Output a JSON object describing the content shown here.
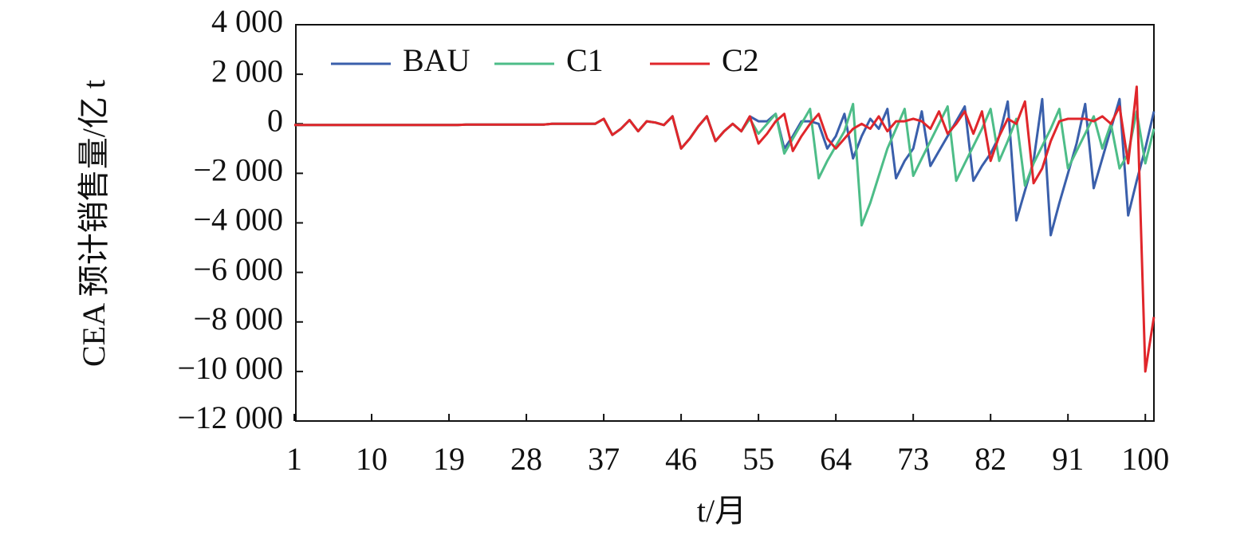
{
  "chart_data": {
    "type": "line",
    "x_label": "t/月",
    "y_label": "CEA 预计销售量/亿 t",
    "x": [
      1,
      2,
      3,
      4,
      5,
      6,
      7,
      8,
      9,
      10,
      11,
      12,
      13,
      14,
      15,
      16,
      17,
      18,
      19,
      20,
      21,
      22,
      23,
      24,
      25,
      26,
      27,
      28,
      29,
      30,
      31,
      32,
      33,
      34,
      35,
      36,
      37,
      38,
      39,
      40,
      41,
      42,
      43,
      44,
      45,
      46,
      47,
      48,
      49,
      50,
      51,
      52,
      53,
      54,
      55,
      56,
      57,
      58,
      59,
      60,
      61,
      62,
      63,
      64,
      65,
      66,
      67,
      68,
      69,
      70,
      71,
      72,
      73,
      74,
      75,
      76,
      77,
      78,
      79,
      80,
      81,
      82,
      83,
      84,
      85,
      86,
      87,
      88,
      89,
      90,
      91,
      92,
      93,
      94,
      95,
      96,
      97,
      98,
      99,
      100,
      101
    ],
    "series": [
      {
        "name": "BAU",
        "color": "#3a5fab",
        "values": [
          -50,
          -50,
          -50,
          -50,
          -50,
          -50,
          -50,
          -50,
          -50,
          -50,
          -50,
          -50,
          -50,
          -50,
          -50,
          -50,
          -50,
          -50,
          -50,
          -50,
          -30,
          -30,
          -30,
          -30,
          -30,
          -30,
          -30,
          -30,
          -30,
          -30,
          0,
          0,
          0,
          0,
          0,
          0,
          200,
          -450,
          -200,
          150,
          -300,
          100,
          50,
          -50,
          300,
          -1000,
          -600,
          -100,
          300,
          -700,
          -300,
          0,
          -300,
          300,
          100,
          100,
          400,
          -1000,
          -500,
          100,
          100,
          0,
          -1000,
          -500,
          400,
          -1400,
          -500,
          200,
          -200,
          600,
          -2200,
          -1500,
          -1000,
          500,
          -1700,
          -1100,
          -500,
          100,
          700,
          -2300,
          -1700,
          -1200,
          -500,
          900,
          -3900,
          -2700,
          -1500,
          1000,
          -4500,
          -3200,
          -2000,
          -800,
          800,
          -2600,
          -1400,
          -200,
          1000,
          -3700,
          -2300,
          -1000,
          500
        ]
      },
      {
        "name": "C1",
        "color": "#4dbd88",
        "values": [
          -50,
          -50,
          -50,
          -50,
          -50,
          -50,
          -50,
          -50,
          -50,
          -50,
          -50,
          -50,
          -50,
          -50,
          -50,
          -50,
          -50,
          -50,
          -50,
          -50,
          -30,
          -30,
          -30,
          -30,
          -30,
          -30,
          -30,
          -30,
          -30,
          -30,
          0,
          0,
          0,
          0,
          0,
          0,
          200,
          -450,
          -200,
          150,
          -300,
          100,
          50,
          -50,
          300,
          -1000,
          -600,
          -100,
          300,
          -700,
          -300,
          0,
          -300,
          200,
          -400,
          0,
          400,
          -1200,
          -600,
          0,
          600,
          -2200,
          -1500,
          -900,
          -300,
          800,
          -4100,
          -3200,
          -2100,
          -1000,
          -200,
          600,
          -2100,
          -1400,
          -700,
          0,
          700,
          -2300,
          -1600,
          -900,
          -200,
          600,
          -1500,
          -700,
          200,
          -2500,
          -1600,
          -900,
          -200,
          600,
          -1800,
          -1100,
          -400,
          300,
          -1000,
          0,
          -1800,
          -1200,
          500,
          -1600,
          -200
        ]
      },
      {
        "name": "C2",
        "color": "#e0262b",
        "values": [
          -50,
          -50,
          -50,
          -50,
          -50,
          -50,
          -50,
          -50,
          -50,
          -50,
          -50,
          -50,
          -50,
          -50,
          -50,
          -50,
          -50,
          -50,
          -50,
          -50,
          -30,
          -30,
          -30,
          -30,
          -30,
          -30,
          -30,
          -30,
          -30,
          -30,
          0,
          0,
          0,
          0,
          0,
          0,
          200,
          -450,
          -200,
          150,
          -300,
          100,
          50,
          -50,
          300,
          -1000,
          -600,
          -100,
          300,
          -700,
          -300,
          0,
          -300,
          300,
          -800,
          -400,
          100,
          400,
          -1100,
          -500,
          0,
          400,
          -600,
          -1000,
          -600,
          -200,
          0,
          -200,
          300,
          -300,
          100,
          100,
          200,
          100,
          -200,
          500,
          -400,
          0,
          500,
          -400,
          500,
          -1500,
          -500,
          200,
          0,
          900,
          -2400,
          -1800,
          -700,
          100,
          200,
          200,
          200,
          100,
          300,
          0,
          700,
          -1600,
          1500,
          -10000,
          -7800
        ]
      }
    ],
    "xlim": [
      1,
      101
    ],
    "xticks": [
      1,
      10,
      19,
      28,
      37,
      46,
      55,
      64,
      73,
      82,
      91,
      100
    ],
    "ylim": [
      -12000,
      4000
    ],
    "yticks": [
      {
        "value": -12000,
        "label": "−12 000"
      },
      {
        "value": -10000,
        "label": "−10 000"
      },
      {
        "value": -8000,
        "label": "−8 000"
      },
      {
        "value": -6000,
        "label": "−6 000"
      },
      {
        "value": -4000,
        "label": "−4 000"
      },
      {
        "value": -2000,
        "label": "−2 000"
      },
      0,
      {
        "value": 2000,
        "label": "2 000"
      },
      {
        "value": 4000,
        "label": "4 000"
      }
    ],
    "grid": false,
    "legend": "top-left"
  }
}
